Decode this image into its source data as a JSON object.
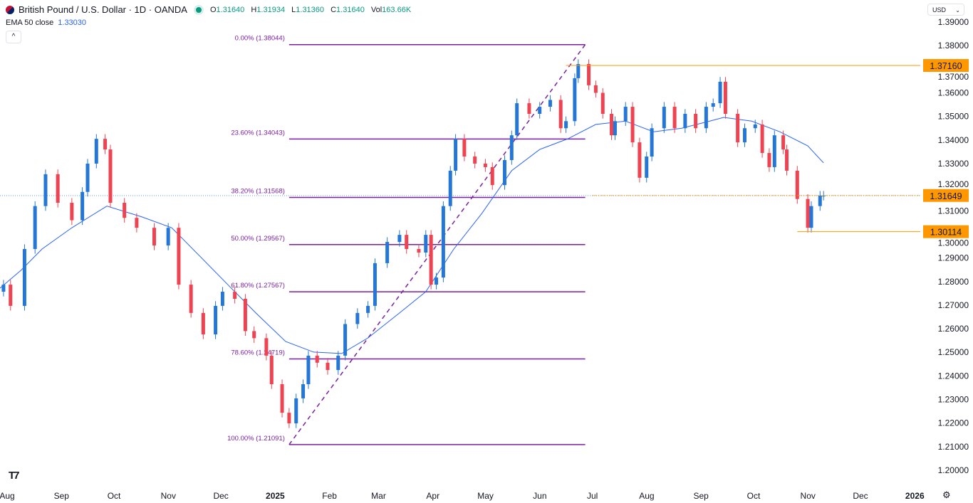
{
  "header": {
    "symbol": "British Pound / U.S. Dollar · 1D · OANDA",
    "open_label": "O",
    "open": "1.31640",
    "high_label": "H",
    "high": "1.31934",
    "low_label": "L",
    "low": "1.31360",
    "close_label": "C",
    "close": "1.31640",
    "vol_label": "Vol",
    "vol": "163.66K",
    "indicator_label": "EMA 50 close",
    "indicator_value": "1.33030",
    "collapse_icon": "chevron-up-icon",
    "currency": "USD",
    "logo": "TV"
  },
  "colors": {
    "up": "#2477d6",
    "down": "#ef4352",
    "ema": "#2962ff",
    "fib": "#7b1fa2",
    "level": "#ff9800",
    "text": "#131722"
  },
  "chart_data": {
    "type": "candlestick",
    "ylim": [
      1.195,
      1.395
    ],
    "xlim": [
      "2024-08-01",
      "2026-01-15"
    ],
    "y_ticks": [
      "1.39000",
      "1.38000",
      "1.37000",
      "1.36000",
      "1.35000",
      "1.34000",
      "1.33000",
      "1.32000",
      "1.31000",
      "1.30000",
      "1.29000",
      "1.28000",
      "1.27000",
      "1.26000",
      "1.25000",
      "1.24000",
      "1.23000",
      "1.22000",
      "1.21000",
      "1.20000"
    ],
    "x_ticks": [
      {
        "date": "2024-08-01",
        "label": "Aug",
        "bold": false
      },
      {
        "date": "2024-09-01",
        "label": "Sep",
        "bold": false
      },
      {
        "date": "2024-10-01",
        "label": "Oct",
        "bold": false
      },
      {
        "date": "2024-11-01",
        "label": "Nov",
        "bold": false
      },
      {
        "date": "2024-12-01",
        "label": "Dec",
        "bold": false
      },
      {
        "date": "2025-01-01",
        "label": "2025",
        "bold": true
      },
      {
        "date": "2025-02-01",
        "label": "Feb",
        "bold": false
      },
      {
        "date": "2025-03-01",
        "label": "Mar",
        "bold": false
      },
      {
        "date": "2025-04-01",
        "label": "Apr",
        "bold": false
      },
      {
        "date": "2025-05-01",
        "label": "May",
        "bold": false
      },
      {
        "date": "2025-06-01",
        "label": "Jun",
        "bold": false
      },
      {
        "date": "2025-07-01",
        "label": "Jul",
        "bold": false
      },
      {
        "date": "2025-08-01",
        "label": "Aug",
        "bold": false
      },
      {
        "date": "2025-09-01",
        "label": "Sep",
        "bold": false
      },
      {
        "date": "2025-10-01",
        "label": "Oct",
        "bold": false
      },
      {
        "date": "2025-11-01",
        "label": "Nov",
        "bold": false
      },
      {
        "date": "2025-12-01",
        "label": "Dec",
        "bold": false
      },
      {
        "date": "2026-01-01",
        "label": "2026",
        "bold": true
      }
    ],
    "closes": [
      [
        "2024-08-03",
        1.2787
      ],
      [
        "2024-08-07",
        1.2697
      ],
      [
        "2024-08-15",
        1.2938
      ],
      [
        "2024-08-21",
        1.312
      ],
      [
        "2024-08-27",
        1.3255
      ],
      [
        "2024-09-03",
        1.3134
      ],
      [
        "2024-09-11",
        1.306
      ],
      [
        "2024-09-17",
        1.318
      ],
      [
        "2024-09-20",
        1.33
      ],
      [
        "2024-09-25",
        1.3405
      ],
      [
        "2024-09-30",
        1.336
      ],
      [
        "2024-10-03",
        1.3134
      ],
      [
        "2024-10-11",
        1.307
      ],
      [
        "2024-10-18",
        1.3028
      ],
      [
        "2024-10-28",
        1.2953
      ],
      [
        "2024-11-05",
        1.3028
      ],
      [
        "2024-11-11",
        1.2787
      ],
      [
        "2024-11-18",
        1.2667
      ],
      [
        "2024-11-25",
        1.2576
      ],
      [
        "2024-12-02",
        1.2697
      ],
      [
        "2024-12-06",
        1.2757
      ],
      [
        "2024-12-13",
        1.2727
      ],
      [
        "2024-12-19",
        1.259
      ],
      [
        "2024-12-24",
        1.256
      ],
      [
        "2024-12-31",
        1.2486
      ],
      [
        "2025-01-03",
        1.2365
      ],
      [
        "2025-01-09",
        1.2244
      ],
      [
        "2025-01-13",
        1.2199
      ],
      [
        "2025-01-17",
        1.2305
      ],
      [
        "2025-01-21",
        1.2365
      ],
      [
        "2025-01-24",
        1.2486
      ],
      [
        "2025-01-29",
        1.2456
      ],
      [
        "2025-02-04",
        1.2425
      ],
      [
        "2025-02-10",
        1.2486
      ],
      [
        "2025-02-14",
        1.262
      ],
      [
        "2025-02-21",
        1.2667
      ],
      [
        "2025-02-27",
        1.2697
      ],
      [
        "2025-03-03",
        1.2878
      ],
      [
        "2025-03-10",
        1.2968
      ],
      [
        "2025-03-17",
        1.2998
      ],
      [
        "2025-03-21",
        1.2938
      ],
      [
        "2025-03-28",
        1.2923
      ],
      [
        "2025-04-01",
        1.2998
      ],
      [
        "2025-04-04",
        1.2787
      ],
      [
        "2025-04-07",
        1.2817
      ],
      [
        "2025-04-11",
        1.312
      ],
      [
        "2025-04-15",
        1.327
      ],
      [
        "2025-04-18",
        1.3405
      ],
      [
        "2025-04-23",
        1.333
      ],
      [
        "2025-04-29",
        1.33
      ],
      [
        "2025-05-05",
        1.3285
      ],
      [
        "2025-05-09",
        1.3209
      ],
      [
        "2025-05-16",
        1.3315
      ],
      [
        "2025-05-20",
        1.342
      ],
      [
        "2025-05-23",
        1.3556
      ],
      [
        "2025-05-30",
        1.3511
      ],
      [
        "2025-06-05",
        1.3541
      ],
      [
        "2025-06-11",
        1.357
      ],
      [
        "2025-06-17",
        1.345
      ],
      [
        "2025-06-20",
        1.348
      ],
      [
        "2025-06-25",
        1.3662
      ],
      [
        "2025-06-27",
        1.3722
      ],
      [
        "2025-07-03",
        1.3632
      ],
      [
        "2025-07-07",
        1.36
      ],
      [
        "2025-07-11",
        1.3511
      ],
      [
        "2025-07-16",
        1.342
      ],
      [
        "2025-07-18",
        1.348
      ],
      [
        "2025-07-24",
        1.3541
      ],
      [
        "2025-07-28",
        1.339
      ],
      [
        "2025-08-01",
        1.324
      ],
      [
        "2025-08-05",
        1.333
      ],
      [
        "2025-08-08",
        1.345
      ],
      [
        "2025-08-15",
        1.3541
      ],
      [
        "2025-08-21",
        1.345
      ],
      [
        "2025-08-27",
        1.3511
      ],
      [
        "2025-09-02",
        1.345
      ],
      [
        "2025-09-08",
        1.3541
      ],
      [
        "2025-09-12",
        1.3556
      ],
      [
        "2025-09-16",
        1.3647
      ],
      [
        "2025-09-19",
        1.3511
      ],
      [
        "2025-09-26",
        1.339
      ],
      [
        "2025-09-30",
        1.345
      ],
      [
        "2025-10-06",
        1.3466
      ],
      [
        "2025-10-10",
        1.3345
      ],
      [
        "2025-10-14",
        1.3285
      ],
      [
        "2025-10-17",
        1.342
      ],
      [
        "2025-10-22",
        1.336
      ],
      [
        "2025-10-24",
        1.327
      ],
      [
        "2025-10-30",
        1.315
      ],
      [
        "2025-11-05",
        1.3028
      ],
      [
        "2025-11-07",
        1.312
      ],
      [
        "2025-11-12",
        1.3164
      ],
      [
        "2025-11-14",
        1.3164
      ]
    ],
    "ema_50": [
      [
        "2024-08-01",
        1.2772
      ],
      [
        "2024-08-13",
        1.2848
      ],
      [
        "2024-08-25",
        1.2938
      ],
      [
        "2024-09-11",
        1.3028
      ],
      [
        "2024-10-01",
        1.312
      ],
      [
        "2024-10-21",
        1.3074
      ],
      [
        "2024-11-07",
        1.3028
      ],
      [
        "2024-11-23",
        1.2908
      ],
      [
        "2024-12-09",
        1.2787
      ],
      [
        "2024-12-25",
        1.2667
      ],
      [
        "2025-01-11",
        1.2546
      ],
      [
        "2025-01-27",
        1.2501
      ],
      [
        "2025-02-12",
        1.2495
      ],
      [
        "2025-02-27",
        1.2561
      ],
      [
        "2025-03-17",
        1.2667
      ],
      [
        "2025-04-01",
        1.2757
      ],
      [
        "2025-04-17",
        1.2938
      ],
      [
        "2025-05-03",
        1.3089
      ],
      [
        "2025-05-20",
        1.327
      ],
      [
        "2025-06-05",
        1.336
      ],
      [
        "2025-06-21",
        1.3405
      ],
      [
        "2025-07-07",
        1.3466
      ],
      [
        "2025-07-24",
        1.348
      ],
      [
        "2025-08-09",
        1.3435
      ],
      [
        "2025-08-25",
        1.345
      ],
      [
        "2025-09-10",
        1.348
      ],
      [
        "2025-09-18",
        1.3496
      ],
      [
        "2025-10-04",
        1.348
      ],
      [
        "2025-10-20",
        1.3435
      ],
      [
        "2025-11-05",
        1.3375
      ],
      [
        "2025-11-14",
        1.3303
      ]
    ],
    "fibonacci": {
      "start": [
        "2025-01-13",
        1.21091
      ],
      "end": [
        "2025-07-01",
        1.38044
      ],
      "levels": [
        {
          "pct": "0.00%",
          "price": 1.38044,
          "label": "0.00% (1.38044)"
        },
        {
          "pct": "23.60%",
          "price": 1.34043,
          "label": "23.60% (1.34043)"
        },
        {
          "pct": "38.20%",
          "price": 1.31568,
          "label": "38.20% (1.31568)"
        },
        {
          "pct": "50.00%",
          "price": 1.29567,
          "label": "50.00% (1.29567)"
        },
        {
          "pct": "61.80%",
          "price": 1.27567,
          "label": "61.80% (1.27567)"
        },
        {
          "pct": "78.60%",
          "price": 1.24719,
          "label": "78.60% (1.24719)"
        },
        {
          "pct": "100.00%",
          "price": 1.21091,
          "label": "100.00% (1.21091)"
        }
      ]
    },
    "horizontal_levels": [
      {
        "price": 1.3716,
        "label": "1.37160",
        "from": "2025-06-20",
        "style": "solid"
      },
      {
        "price": 1.31649,
        "label": "1.31649",
        "from": "2025-07-05",
        "style": "dotted"
      },
      {
        "price": 1.30114,
        "label": "1.30114",
        "from": "2025-10-30",
        "style": "solid"
      }
    ],
    "last_price": 1.3164
  }
}
